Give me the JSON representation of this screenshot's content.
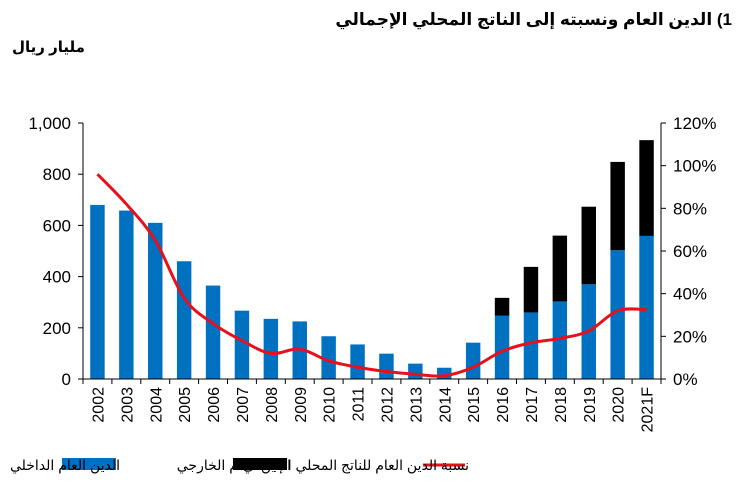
{
  "title": "1)  الدين العام ونسبته إلى الناتج المحلي الإجمالي",
  "unit_label": "مليار ريال",
  "chart_data": {
    "type": "bar",
    "stacked": true,
    "categories": [
      "2002",
      "2003",
      "2004",
      "2005",
      "2006",
      "2007",
      "2008",
      "2009",
      "2010",
      "2011",
      "2012",
      "2013",
      "2014",
      "2015",
      "2016",
      "2017",
      "2018",
      "2019",
      "2020",
      "2021F"
    ],
    "series": [
      {
        "name": "الدين العام الداخلي",
        "kind": "bar",
        "axis": "left",
        "color": "#0070C0",
        "values": [
          680,
          658,
          610,
          460,
          365,
          267,
          235,
          225,
          167,
          135,
          99,
          60,
          44,
          142,
          247,
          260,
          303,
          370,
          503,
          559
        ]
      },
      {
        "name": "الدين العام الخارجي",
        "kind": "bar",
        "axis": "left",
        "color": "#000000",
        "values": [
          0,
          0,
          0,
          0,
          0,
          0,
          0,
          0,
          0,
          0,
          0,
          0,
          0,
          0,
          70,
          178,
          257,
          303,
          345,
          374
        ]
      },
      {
        "name": "نسبة الدين العام للناتج المحلي الإجمالي",
        "kind": "line",
        "axis": "right",
        "color": "#E8101B",
        "values": [
          96,
          82,
          65,
          38,
          26,
          18,
          12,
          14,
          8.5,
          5.5,
          3.5,
          2.2,
          1.5,
          5.5,
          13,
          17,
          19,
          22.5,
          32,
          32.5
        ]
      }
    ],
    "y_left": {
      "min": 0,
      "max": 1000,
      "ticks": [
        "0",
        "200",
        "400",
        "600",
        "800",
        "1,000"
      ]
    },
    "y_right": {
      "min": 0,
      "max": 120,
      "ticks": [
        "0%",
        "20%",
        "40%",
        "60%",
        "80%",
        "100%",
        "120%"
      ]
    },
    "grid": false,
    "legend_position": "bottom"
  }
}
